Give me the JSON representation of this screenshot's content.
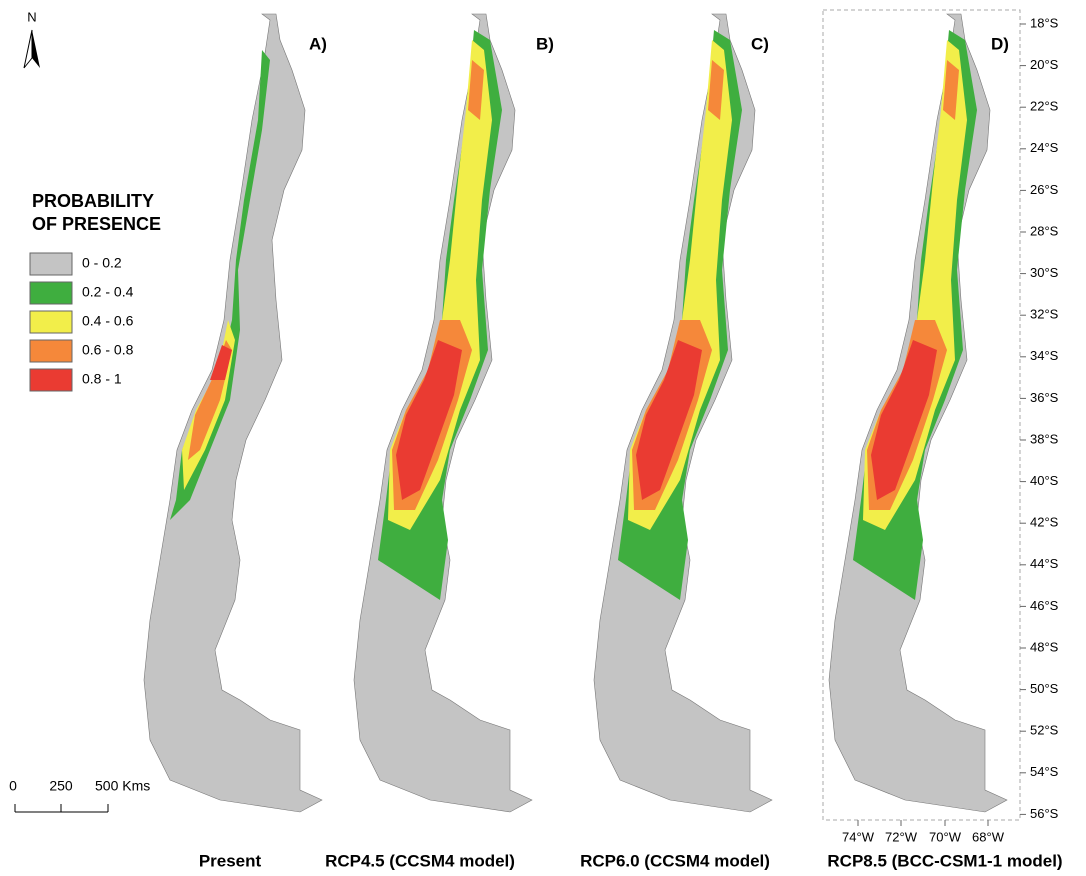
{
  "north_label": "N",
  "legend": {
    "title": [
      "PROBABILITY",
      "OF PRESENCE"
    ],
    "items": [
      {
        "label": "0 - 0.2",
        "color": "#c4c4c4"
      },
      {
        "label": "0.2 - 0.4",
        "color": "#3fae3f"
      },
      {
        "label": "0.4 - 0.6",
        "color": "#f2ee4a"
      },
      {
        "label": "0.6 - 0.8",
        "color": "#f5883a"
      },
      {
        "label": "0.8 - 1",
        "color": "#ea3b32"
      }
    ]
  },
  "scale_bar": {
    "labels": [
      "0",
      "250",
      "500 Kms"
    ]
  },
  "panels": [
    {
      "label": "A)",
      "caption": "Present"
    },
    {
      "label": "B)",
      "caption": "RCP4.5 (CCSM4 model)"
    },
    {
      "label": "C)",
      "caption": "RCP6.0 (CCSM4 model)"
    },
    {
      "label": "D)",
      "caption": "RCP8.5 (BCC-CSM1-1 model)"
    }
  ],
  "latitude_ticks": [
    "18°S",
    "20°S",
    "22°S",
    "24°S",
    "26°S",
    "28°S",
    "30°S",
    "32°S",
    "34°S",
    "36°S",
    "38°S",
    "40°S",
    "42°S",
    "44°S",
    "46°S",
    "48°S",
    "50°S",
    "52°S",
    "54°S",
    "56°S"
  ],
  "longitude_ticks": [
    "74°W",
    "72°W",
    "70°W",
    "68°W"
  ]
}
